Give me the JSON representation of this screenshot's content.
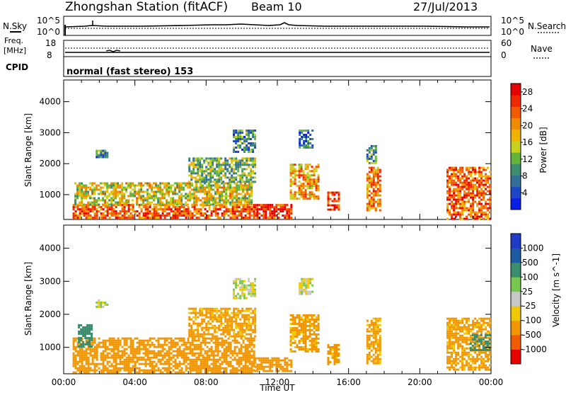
{
  "header": {
    "station": "Zhongshan Station (fitACF)",
    "beam": "Beam 10",
    "date": "27/Jul/2013"
  },
  "side_labels": {
    "nsky": "N.Sky",
    "nsearch": "N.Search",
    "freq_line1": "Freq.",
    "freq_line2": "[MHz]",
    "nave": "Nave",
    "cpid": "CPID"
  },
  "noise_axis": {
    "left_top": "10^5",
    "left_bottom": "10^0",
    "right_top": "10^5",
    "right_bottom": "10^0"
  },
  "freq_axis": {
    "left_top": "18",
    "left_bottom": "8",
    "right_top": "60",
    "right_bottom": "0"
  },
  "cpid_text": "normal (fast stereo) 153",
  "colors": {
    "power_scale": [
      "#0a1ee6",
      "#1e46c8",
      "#326e96",
      "#3c8c6e",
      "#64b43c",
      "#c8d21e",
      "#f0b400",
      "#f08c00",
      "#f05a00",
      "#f02800",
      "#e60000"
    ],
    "velocity_scale": [
      "#e60000",
      "#f05a00",
      "#f09600",
      "#f0c800",
      "#c8c8c8",
      "#78c850",
      "#3c8c6e",
      "#1e5aa0",
      "#1e3cc8"
    ]
  },
  "chart_data": [
    {
      "type": "heatmap",
      "panel": "noise",
      "ylabel_left": "N.Sky",
      "ylabel_right": "N.Search",
      "y_scale": "log",
      "ylim": [
        1,
        100000
      ]
    },
    {
      "type": "heatmap",
      "panel": "frequency",
      "ylabel_left": "Freq. [MHz]",
      "ylabel_right": "Nave",
      "ylim_left": [
        8,
        18
      ],
      "ylim_right": [
        0,
        60
      ]
    },
    {
      "type": "heatmap",
      "panel": "power",
      "ylabel": "Slant Range [km]",
      "yticks": [
        1000,
        2000,
        3000,
        4000
      ],
      "ylim": [
        200,
        4700
      ],
      "xlim": [
        0,
        24
      ],
      "colorbar_label": "Power [dB]",
      "colorbar_ticks": [
        "4",
        "8",
        "12",
        "16",
        "20",
        "24",
        "28"
      ],
      "colorbar_range": [
        0,
        30
      ],
      "patches": [
        {
          "t0": 0.5,
          "t1": 10.7,
          "r0": 250,
          "r1": 700,
          "value": 24
        },
        {
          "t0": 0.6,
          "t1": 10.5,
          "r0": 700,
          "r1": 1400,
          "value": 16
        },
        {
          "t0": 1.8,
          "t1": 2.4,
          "r0": 2200,
          "r1": 2450,
          "value": 8
        },
        {
          "t0": 7.0,
          "t1": 10.8,
          "r0": 1400,
          "r1": 2200,
          "value": 12
        },
        {
          "t0": 9.5,
          "t1": 10.8,
          "r0": 2400,
          "r1": 3100,
          "value": 8
        },
        {
          "t0": 10.7,
          "t1": 12.8,
          "r0": 250,
          "r1": 700,
          "value": 28
        },
        {
          "t0": 12.7,
          "t1": 14.3,
          "r0": 900,
          "r1": 2000,
          "value": 20
        },
        {
          "t0": 13.2,
          "t1": 14.0,
          "r0": 2500,
          "r1": 3100,
          "value": 6
        },
        {
          "t0": 14.8,
          "t1": 15.5,
          "r0": 500,
          "r1": 1100,
          "value": 26
        },
        {
          "t0": 17.0,
          "t1": 17.8,
          "r0": 500,
          "r1": 1900,
          "value": 22
        },
        {
          "t0": 17.0,
          "t1": 17.5,
          "r0": 2000,
          "r1": 2600,
          "value": 10
        },
        {
          "t0": 21.5,
          "t1": 23.9,
          "r0": 250,
          "r1": 1900,
          "value": 24
        }
      ]
    },
    {
      "type": "heatmap",
      "panel": "velocity",
      "ylabel": "Slant Range [km]",
      "yticks": [
        1000,
        2000,
        3000,
        4000
      ],
      "ylim": [
        200,
        4700
      ],
      "xlim": [
        0,
        24
      ],
      "xlabel": "Time UT",
      "xticklabels": [
        "00:00",
        "04:00",
        "08:00",
        "12:00",
        "16:00",
        "20:00",
        "00:00"
      ],
      "colorbar_label": "Velocity [m s^-1]",
      "colorbar_ticks": [
        "1000",
        "500",
        "100",
        "25",
        "-25",
        "-100",
        "-500",
        "-1000"
      ],
      "patches": [
        {
          "t0": 0.5,
          "t1": 10.7,
          "r0": 250,
          "r1": 1300,
          "value": -300
        },
        {
          "t0": 0.8,
          "t1": 1.6,
          "r0": 1000,
          "r1": 1700,
          "value": 400
        },
        {
          "t0": 1.8,
          "t1": 2.4,
          "r0": 2200,
          "r1": 2450,
          "value": 0
        },
        {
          "t0": 7.0,
          "t1": 10.8,
          "r0": 1300,
          "r1": 2200,
          "value": -150
        },
        {
          "t0": 9.5,
          "t1": 10.8,
          "r0": 2500,
          "r1": 3100,
          "value": 0
        },
        {
          "t0": 10.7,
          "t1": 12.8,
          "r0": 250,
          "r1": 700,
          "value": -300
        },
        {
          "t0": 12.7,
          "t1": 14.3,
          "r0": 900,
          "r1": 2000,
          "value": -150
        },
        {
          "t0": 13.2,
          "t1": 14.0,
          "r0": 2600,
          "r1": 3100,
          "value": 0
        },
        {
          "t0": 14.8,
          "t1": 15.5,
          "r0": 500,
          "r1": 1100,
          "value": -150
        },
        {
          "t0": 17.0,
          "t1": 17.8,
          "r0": 500,
          "r1": 1900,
          "value": -150
        },
        {
          "t0": 21.5,
          "t1": 23.9,
          "r0": 300,
          "r1": 1900,
          "value": -150
        },
        {
          "t0": 22.8,
          "t1": 23.9,
          "r0": 900,
          "r1": 1400,
          "value": 300
        }
      ]
    }
  ]
}
